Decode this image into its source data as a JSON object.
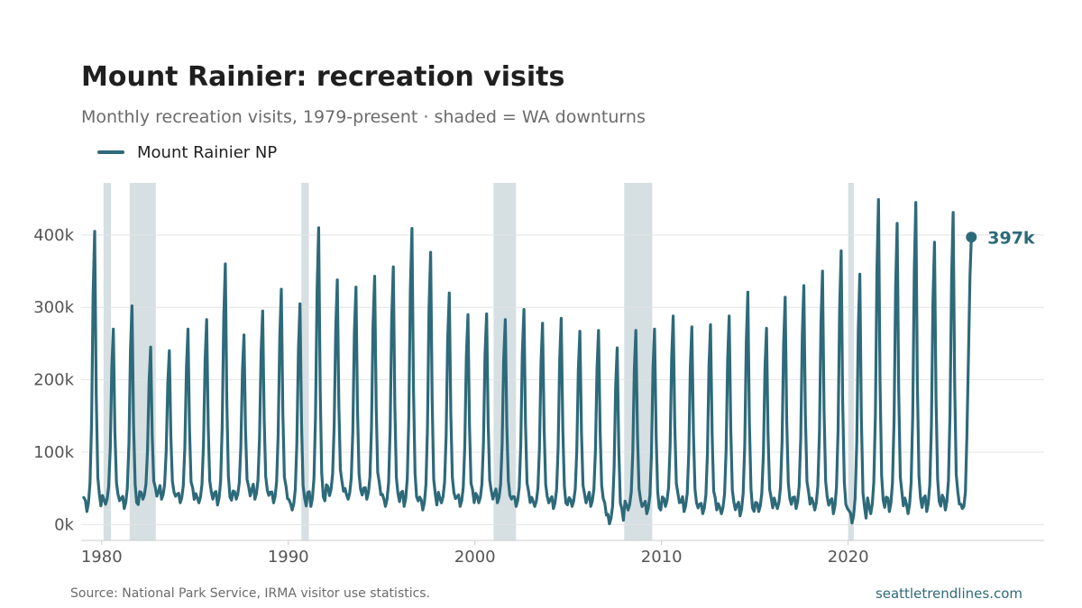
{
  "header": {
    "title": "Mount Rainier: recreation visits",
    "subtitle": "Monthly recreation visits, 1979-present · shaded = WA downturns"
  },
  "footer": {
    "source": "Source: National Park Service, IRMA visitor use statistics.",
    "site": "seattletrendlines.com"
  },
  "colors": {
    "series": "#2d6a7a",
    "recession": "#d6dfe2",
    "grid": "#e4e4e4",
    "tick_text": "#555555",
    "axis": "#cccccc"
  },
  "chart_data": {
    "type": "line",
    "title": "Mount Rainier: recreation visits",
    "subtitle": "Monthly recreation visits, 1979-present · shaded = WA downturns",
    "xlabel": "",
    "ylabel": "",
    "xlim": [
      1978.9,
      2030.5
    ],
    "ylim": [
      -22000,
      472000
    ],
    "x_ticks": [
      1980,
      1990,
      2000,
      2010,
      2020
    ],
    "x_tick_labels": [
      "1980",
      "1990",
      "2000",
      "2010",
      "2020"
    ],
    "y_ticks": [
      0,
      100000,
      200000,
      300000,
      400000
    ],
    "y_tick_labels": [
      "0k",
      "100k",
      "200k",
      "300k",
      "400k"
    ],
    "grid": "horizontal",
    "legend": "top-left",
    "recession_bands": [
      [
        1980.1,
        1980.5
      ],
      [
        1981.5,
        1982.9
      ],
      [
        1990.7,
        1991.1
      ],
      [
        2001.0,
        2002.2
      ],
      [
        2008.0,
        2009.5
      ],
      [
        2020.0,
        2020.3
      ]
    ],
    "series": [
      {
        "name": "Mount Rainier NP",
        "annual_peaks": [
          [
            1979,
            405000
          ],
          [
            1980,
            270000
          ],
          [
            1981,
            302000
          ],
          [
            1982,
            245000
          ],
          [
            1983,
            240000
          ],
          [
            1984,
            270000
          ],
          [
            1985,
            283000
          ],
          [
            1986,
            360000
          ],
          [
            1987,
            262000
          ],
          [
            1988,
            295000
          ],
          [
            1989,
            325000
          ],
          [
            1990,
            305000
          ],
          [
            1991,
            410000
          ],
          [
            1992,
            338000
          ],
          [
            1993,
            328000
          ],
          [
            1994,
            343000
          ],
          [
            1995,
            356000
          ],
          [
            1996,
            409000
          ],
          [
            1997,
            376000
          ],
          [
            1998,
            320000
          ],
          [
            1999,
            290000
          ],
          [
            2000,
            291000
          ],
          [
            2001,
            283000
          ],
          [
            2002,
            297000
          ],
          [
            2003,
            278000
          ],
          [
            2004,
            285000
          ],
          [
            2005,
            267000
          ],
          [
            2006,
            268000
          ],
          [
            2007,
            244000
          ],
          [
            2008,
            268000
          ],
          [
            2009,
            270000
          ],
          [
            2010,
            288000
          ],
          [
            2011,
            273000
          ],
          [
            2012,
            276000
          ],
          [
            2013,
            288000
          ],
          [
            2014,
            321000
          ],
          [
            2015,
            271000
          ],
          [
            2016,
            314000
          ],
          [
            2017,
            330000
          ],
          [
            2018,
            350000
          ],
          [
            2019,
            378000
          ],
          [
            2020,
            346000
          ],
          [
            2021,
            449000
          ],
          [
            2022,
            416000
          ],
          [
            2023,
            445000
          ],
          [
            2024,
            390000
          ],
          [
            2025,
            431000
          ]
        ],
        "annual_troughs": [
          [
            1979,
            18000
          ],
          [
            1980,
            28000
          ],
          [
            1981,
            22000
          ],
          [
            1982,
            35000
          ],
          [
            1983,
            35000
          ],
          [
            1984,
            30000
          ],
          [
            1985,
            30000
          ],
          [
            1986,
            27000
          ],
          [
            1987,
            35000
          ],
          [
            1988,
            35000
          ],
          [
            1989,
            30000
          ],
          [
            1990,
            20000
          ],
          [
            1991,
            25000
          ],
          [
            1992,
            40000
          ],
          [
            1993,
            35000
          ],
          [
            1994,
            35000
          ],
          [
            1995,
            25000
          ],
          [
            1996,
            25000
          ],
          [
            1997,
            20000
          ],
          [
            1998,
            30000
          ],
          [
            1999,
            25000
          ],
          [
            2000,
            30000
          ],
          [
            2001,
            30000
          ],
          [
            2002,
            25000
          ],
          [
            2003,
            25000
          ],
          [
            2004,
            22000
          ],
          [
            2005,
            25000
          ],
          [
            2006,
            25000
          ],
          [
            2007,
            1000
          ],
          [
            2008,
            20000
          ],
          [
            2009,
            15000
          ],
          [
            2010,
            25000
          ],
          [
            2011,
            18000
          ],
          [
            2012,
            15000
          ],
          [
            2013,
            15000
          ],
          [
            2014,
            12000
          ],
          [
            2015,
            18000
          ],
          [
            2016,
            22000
          ],
          [
            2017,
            22000
          ],
          [
            2018,
            20000
          ],
          [
            2019,
            15000
          ],
          [
            2020,
            2000
          ],
          [
            2021,
            15000
          ],
          [
            2022,
            18000
          ],
          [
            2023,
            15000
          ],
          [
            2024,
            18000
          ],
          [
            2025,
            20000
          ]
        ],
        "last_point": [
          2026.6,
          397000
        ],
        "last_label": "397k"
      }
    ]
  }
}
